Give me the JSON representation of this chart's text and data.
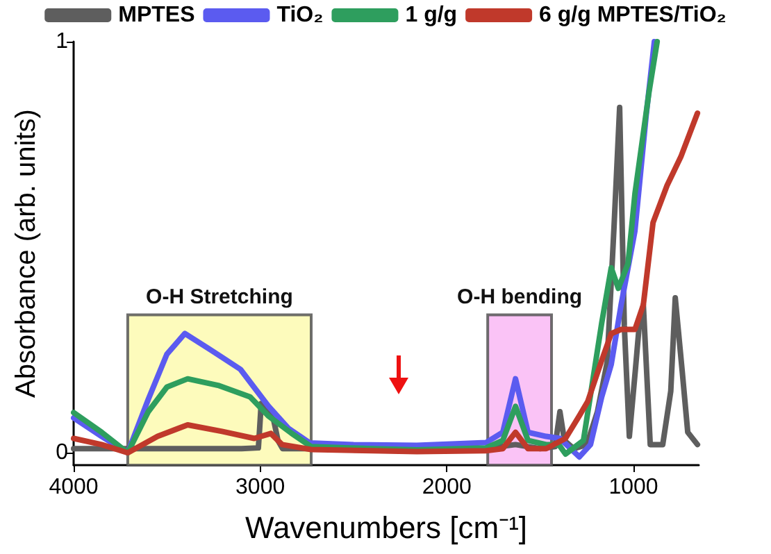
{
  "chart_data": {
    "type": "line",
    "xlabel": "Wavenumbers [cm⁻¹]",
    "ylabel": "Absorbance (arb. units)",
    "xlim": [
      4000,
      650
    ],
    "xticks": [
      4000,
      3000,
      2000,
      1000
    ],
    "ylim": [
      -0.03,
      1
    ],
    "yticks": [
      0,
      1
    ],
    "grid": false,
    "legend": "top",
    "marker": "none",
    "line_style": "solid",
    "bands": [
      {
        "axis": "x",
        "from": 3710,
        "to": 2727,
        "label": "O-H Stretching",
        "color": "#fdfab0"
      },
      {
        "axis": "x",
        "from": 1781,
        "to": 1439,
        "label": "O-H bending",
        "color": "#f9b8f5"
      }
    ],
    "series": [
      {
        "name": "MPTES",
        "color": "#5e5e5e",
        "x": [
          4000,
          3500,
          3100,
          3010,
          3003,
          2995,
          2960,
          2928,
          2905,
          2880,
          2700,
          2200,
          1800,
          1632,
          1500,
          1420,
          1394,
          1370,
          1320,
          1250,
          1193,
          1141,
          1104,
          1074,
          1049,
          1022,
          990,
          969,
          947,
          910,
          843,
          800,
          776,
          739,
          709,
          657
        ],
        "values": [
          0.01,
          0.01,
          0.01,
          0.012,
          0.06,
          0.12,
          0.1,
          0.08,
          0.03,
          0.01,
          0.01,
          0.01,
          0.01,
          0.02,
          0.01,
          0.015,
          0.1,
          0.03,
          0.01,
          0.02,
          0.1,
          0.22,
          0.55,
          0.84,
          0.31,
          0.04,
          0.2,
          0.31,
          0.36,
          0.02,
          0.02,
          0.15,
          0.377,
          0.2,
          0.05,
          0.02
        ]
      },
      {
        "name": "TiO₂",
        "color": "#5b5bf0",
        "x": [
          4000,
          3850,
          3710,
          3600,
          3500,
          3404,
          3278,
          3106,
          2957,
          2850,
          2734,
          2500,
          2161,
          1789,
          1700,
          1632,
          1565,
          1468,
          1394,
          1290,
          1230,
          1170,
          1119,
          1066,
          992,
          932,
          888
        ],
        "values": [
          0.085,
          0.04,
          0.0,
          0.13,
          0.24,
          0.29,
          0.254,
          0.203,
          0.114,
          0.06,
          0.024,
          0.02,
          0.018,
          0.025,
          0.05,
          0.18,
          0.05,
          0.04,
          0.035,
          -0.01,
          0.02,
          0.136,
          0.215,
          0.36,
          0.54,
          0.82,
          1.0
        ]
      },
      {
        "name": "1 g/g",
        "color": "#2e9e5e",
        "x": [
          4000,
          3850,
          3710,
          3600,
          3500,
          3389,
          3226,
          3054,
          2957,
          2831,
          2727,
          2400,
          2161,
          1790,
          1700,
          1632,
          1565,
          1468,
          1400,
          1364,
          1268,
          1170,
          1119,
          1081,
          1029,
          992,
          917,
          873
        ],
        "values": [
          0.098,
          0.05,
          0.0,
          0.1,
          0.16,
          0.18,
          0.164,
          0.136,
          0.09,
          0.047,
          0.015,
          0.01,
          0.007,
          0.012,
          0.03,
          0.113,
          0.03,
          0.02,
          0.02,
          -0.003,
          0.03,
          0.316,
          0.45,
          0.4,
          0.46,
          0.63,
          0.876,
          1.0
        ]
      },
      {
        "name": "6 g/g MPTES/TiO₂",
        "color": "#c0392b",
        "x": [
          4000,
          3850,
          3710,
          3550,
          3389,
          3205,
          3032,
          2943,
          2883,
          2727,
          2400,
          2161,
          1790,
          1700,
          1632,
          1565,
          1468,
          1364,
          1290,
          1245,
          1170,
          1119,
          1066,
          992,
          947,
          895,
          820,
          746,
          657
        ],
        "values": [
          0.035,
          0.02,
          0.0,
          0.04,
          0.068,
          0.052,
          0.035,
          0.047,
          0.02,
          0.008,
          0.005,
          0.003,
          0.005,
          0.01,
          0.05,
          0.01,
          0.01,
          0.035,
          0.09,
          0.125,
          0.225,
          0.29,
          0.3,
          0.3,
          0.36,
          0.56,
          0.65,
          0.72,
          0.826
        ]
      }
    ]
  }
}
